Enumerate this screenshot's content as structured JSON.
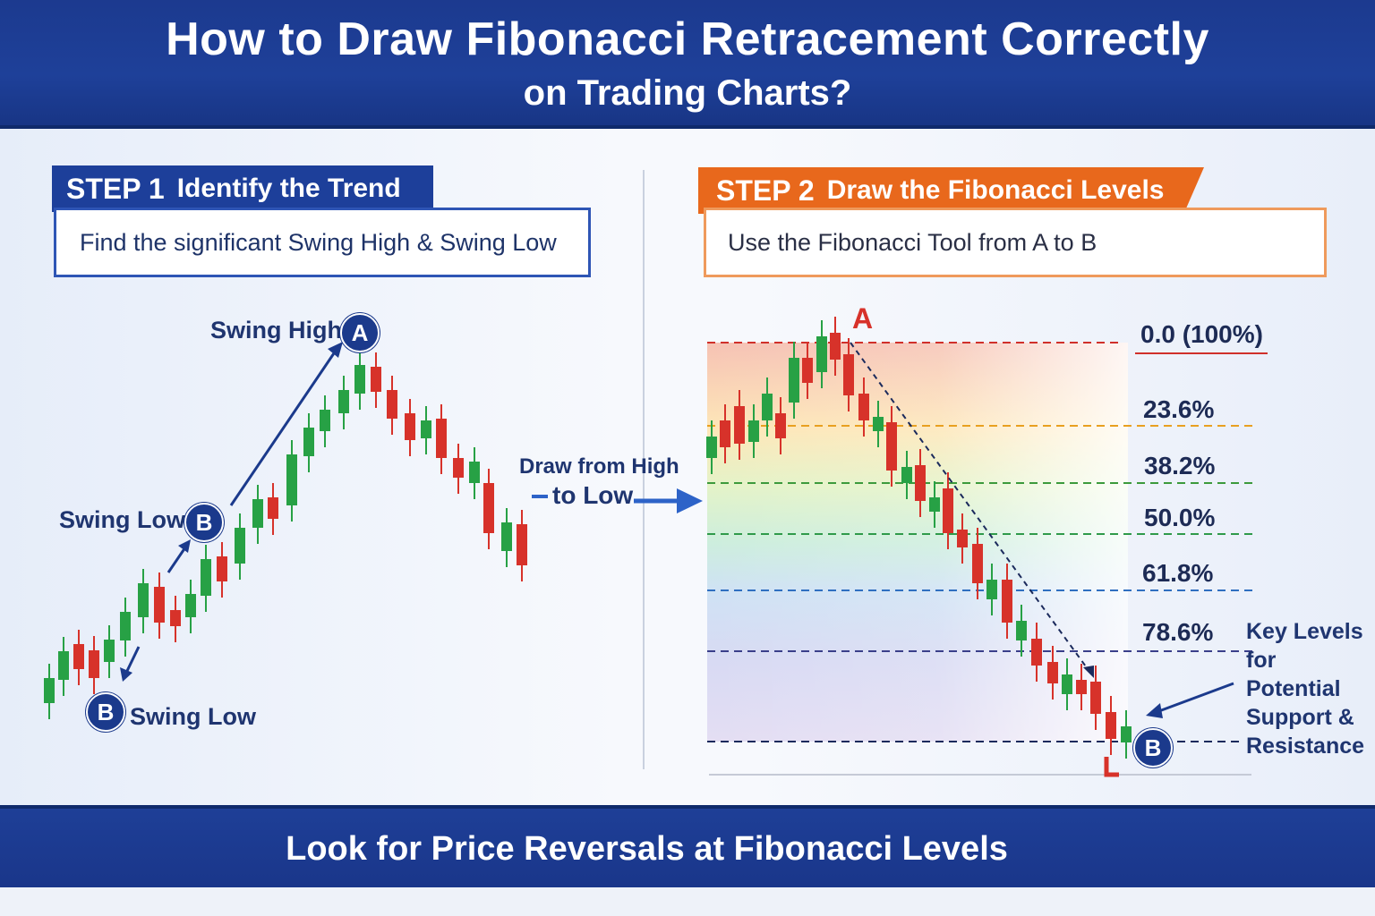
{
  "header": {
    "title_line1": "How to Draw Fibonacci Retracement Correctly",
    "title_line2": "on Trading Charts?"
  },
  "step1": {
    "step_label": "STEP 1",
    "title": "Identify the Trend",
    "description": "Find the significant Swing High & Swing Low",
    "swing_high_label": "Swing High",
    "swing_low_label": "Swing Low",
    "point_a": "A",
    "point_b": "B"
  },
  "arrow_label": {
    "line1": "Draw from High",
    "line2": "to Low"
  },
  "step2": {
    "step_label": "STEP 2",
    "title": "Draw the Fibonacci Levels",
    "description": "Use the Fibonacci Tool from A to B",
    "point_a": "A",
    "point_b": "B",
    "levels": [
      {
        "label": "0.0 (100%)",
        "color": "#d0302a"
      },
      {
        "label": "23.6%",
        "color": "#e8a020"
      },
      {
        "label": "38.2%",
        "color": "#3c9a3c"
      },
      {
        "label": "50.0%",
        "color": "#2f9a4a"
      },
      {
        "label": "61.8%",
        "color": "#2f6fc0"
      },
      {
        "label": "78.6%",
        "color": "#3a3f8a"
      }
    ],
    "key_levels_note": [
      "Key Levels",
      "for Potential",
      "Support &",
      "Resistance"
    ]
  },
  "footer": {
    "text": "Look for Price Reversals at Fibonacci Levels"
  },
  "colors": {
    "navy": "#1b3a8c",
    "orange": "#e8691e",
    "bull": "#27a145",
    "bear": "#d7322a"
  }
}
